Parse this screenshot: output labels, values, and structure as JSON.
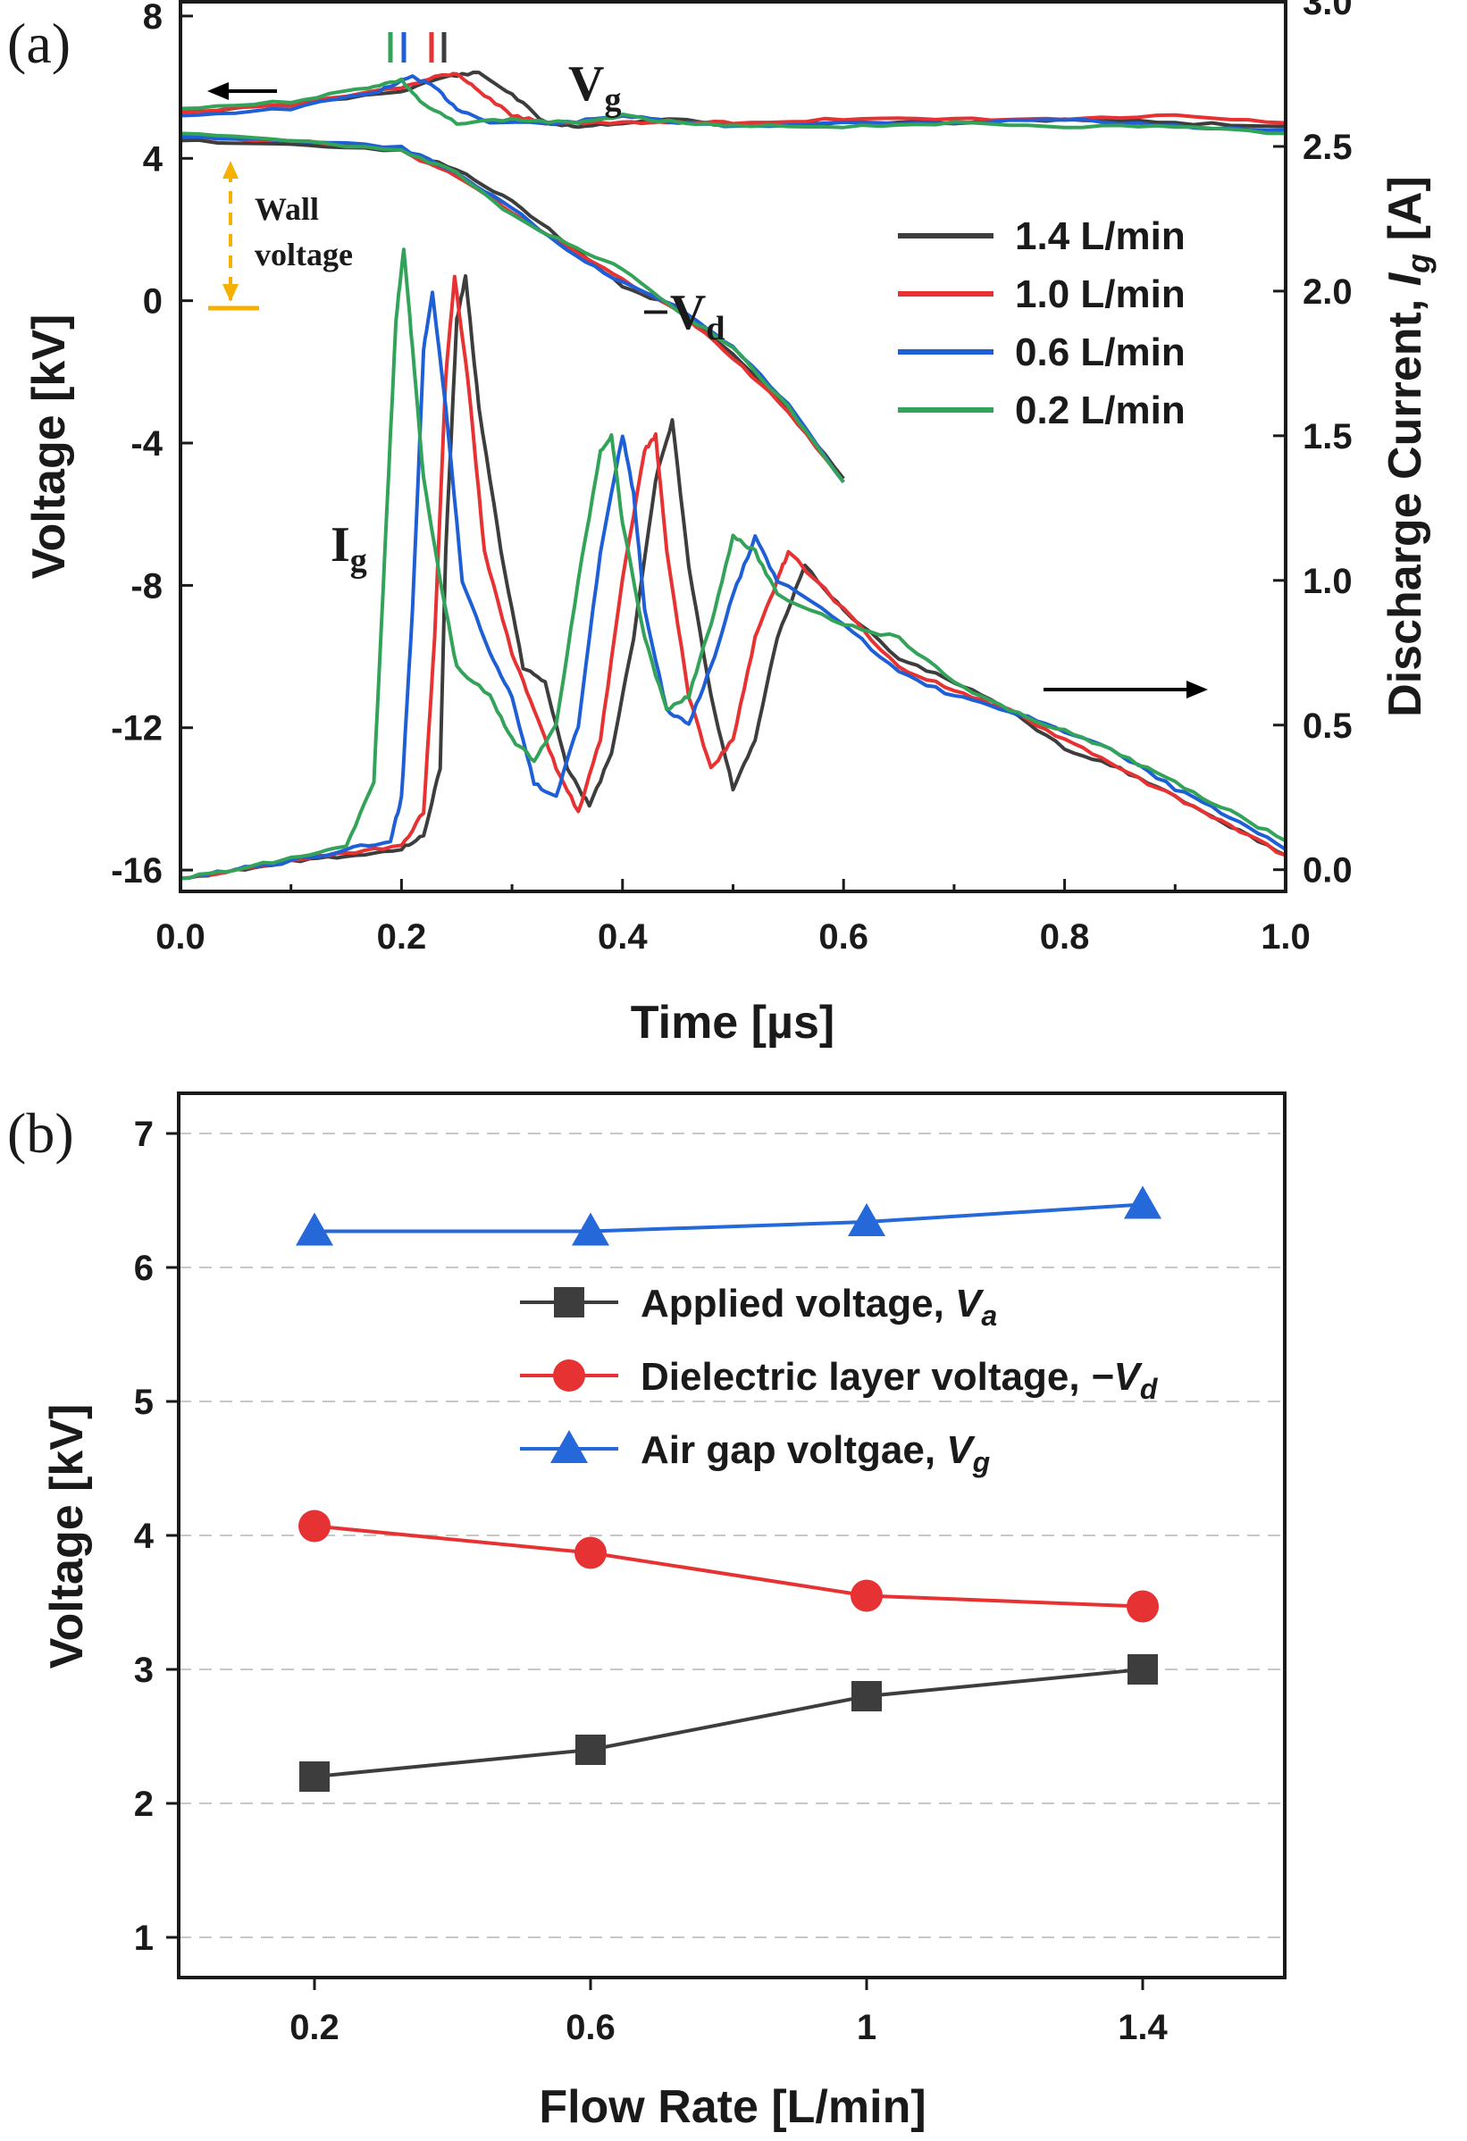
{
  "chart_data": [
    {
      "panel": "(a)",
      "type": "line",
      "xlabel": "Time [µs]",
      "ylabel_left": "Voltage [kV]",
      "ylabel_right_prefix": "Discharge Current, ",
      "ylabel_right_var": "I",
      "ylabel_right_sub": "g",
      "ylabel_right_suffix": " [A]",
      "xlim": [
        0,
        1.0
      ],
      "ylim_left": [
        -16.6,
        8.4
      ],
      "ylim_right": [
        -0.075,
        3.0
      ],
      "xticks": [
        "0.0",
        "0.2",
        "0.4",
        "0.6",
        "0.8",
        "1.0"
      ],
      "yticks_left": [
        "8",
        "4",
        "0",
        "-4",
        "-8",
        "-12",
        "-16"
      ],
      "yticks_right": [
        "3.0",
        "2.5",
        "2.0",
        "1.5",
        "1.0",
        "0.5",
        "0.0"
      ],
      "legend_placement": "right-middle",
      "annotations": {
        "vg_main": "V",
        "vg_sub": "g",
        "vd_main": "−V",
        "vd_sub": "d",
        "ig_main": "I",
        "ig_sub": "g",
        "wall_line1": "Wall",
        "wall_line2": "voltage"
      },
      "series": [
        {
          "name": "1.4 L/min",
          "color": "#3d3d3d",
          "vg": [
            [
              0,
              5.3
            ],
            [
              0.1,
              5.5
            ],
            [
              0.2,
              5.9
            ],
            [
              0.24,
              6.3
            ],
            [
              0.27,
              6.4
            ],
            [
              0.3,
              5.8
            ],
            [
              0.33,
              5.0
            ],
            [
              0.36,
              4.9
            ],
            [
              0.4,
              5.0
            ],
            [
              0.45,
              5.1
            ],
            [
              0.5,
              4.9
            ],
            [
              0.6,
              5.0
            ],
            [
              0.7,
              5.0
            ],
            [
              0.8,
              5.1
            ],
            [
              0.9,
              5.0
            ],
            [
              1.0,
              4.9
            ]
          ],
          "vd": [
            [
              0,
              4.5
            ],
            [
              0.1,
              4.4
            ],
            [
              0.2,
              4.2
            ],
            [
              0.25,
              3.7
            ],
            [
              0.3,
              2.8
            ],
            [
              0.35,
              1.6
            ],
            [
              0.4,
              0.4
            ],
            [
              0.45,
              -0.2
            ],
            [
              0.5,
              -1.5
            ],
            [
              0.55,
              -3.0
            ],
            [
              0.6,
              -5.0
            ]
          ],
          "ig": [
            [
              0,
              -0.03
            ],
            [
              0.05,
              0.0
            ],
            [
              0.1,
              0.03
            ],
            [
              0.15,
              0.05
            ],
            [
              0.2,
              0.07
            ],
            [
              0.22,
              0.12
            ],
            [
              0.235,
              0.35
            ],
            [
              0.24,
              1.1
            ],
            [
              0.25,
              1.9
            ],
            [
              0.258,
              2.05
            ],
            [
              0.27,
              1.6
            ],
            [
              0.29,
              1.1
            ],
            [
              0.31,
              0.7
            ],
            [
              0.33,
              0.65
            ],
            [
              0.35,
              0.35
            ],
            [
              0.37,
              0.22
            ],
            [
              0.39,
              0.4
            ],
            [
              0.41,
              0.8
            ],
            [
              0.43,
              1.35
            ],
            [
              0.445,
              1.55
            ],
            [
              0.46,
              1.05
            ],
            [
              0.48,
              0.6
            ],
            [
              0.5,
              0.28
            ],
            [
              0.52,
              0.45
            ],
            [
              0.54,
              0.8
            ],
            [
              0.565,
              1.05
            ],
            [
              0.6,
              0.9
            ],
            [
              0.65,
              0.73
            ],
            [
              0.7,
              0.65
            ],
            [
              0.75,
              0.55
            ],
            [
              0.8,
              0.42
            ],
            [
              0.85,
              0.35
            ],
            [
              0.9,
              0.25
            ],
            [
              0.95,
              0.15
            ],
            [
              1.0,
              0.05
            ]
          ]
        },
        {
          "name": "1.0 L/min",
          "color": "#e63232",
          "vg": [
            [
              0,
              5.3
            ],
            [
              0.1,
              5.5
            ],
            [
              0.2,
              6.0
            ],
            [
              0.23,
              6.3
            ],
            [
              0.25,
              6.4
            ],
            [
              0.27,
              5.9
            ],
            [
              0.3,
              5.2
            ],
            [
              0.33,
              5.0
            ],
            [
              0.4,
              5.0
            ],
            [
              0.45,
              5.0
            ],
            [
              0.5,
              5.0
            ],
            [
              0.6,
              5.1
            ],
            [
              0.7,
              5.1
            ],
            [
              0.8,
              5.1
            ],
            [
              0.9,
              5.2
            ],
            [
              1.0,
              5.0
            ]
          ],
          "vd": [
            [
              0,
              4.6
            ],
            [
              0.1,
              4.5
            ],
            [
              0.2,
              4.2
            ],
            [
              0.25,
              3.5
            ],
            [
              0.3,
              2.5
            ],
            [
              0.35,
              1.5
            ],
            [
              0.4,
              0.6
            ],
            [
              0.45,
              -0.3
            ],
            [
              0.5,
              -1.6
            ],
            [
              0.55,
              -3.1
            ],
            [
              0.6,
              -5.1
            ]
          ],
          "ig": [
            [
              0,
              -0.03
            ],
            [
              0.05,
              0.0
            ],
            [
              0.1,
              0.03
            ],
            [
              0.15,
              0.06
            ],
            [
              0.2,
              0.08
            ],
            [
              0.22,
              0.2
            ],
            [
              0.23,
              0.8
            ],
            [
              0.24,
              1.7
            ],
            [
              0.248,
              2.05
            ],
            [
              0.26,
              1.7
            ],
            [
              0.275,
              1.1
            ],
            [
              0.3,
              0.75
            ],
            [
              0.32,
              0.55
            ],
            [
              0.34,
              0.35
            ],
            [
              0.36,
              0.2
            ],
            [
              0.38,
              0.45
            ],
            [
              0.4,
              1.0
            ],
            [
              0.42,
              1.45
            ],
            [
              0.43,
              1.5
            ],
            [
              0.44,
              1.1
            ],
            [
              0.46,
              0.6
            ],
            [
              0.48,
              0.35
            ],
            [
              0.5,
              0.45
            ],
            [
              0.52,
              0.8
            ],
            [
              0.54,
              1.0
            ],
            [
              0.55,
              1.1
            ],
            [
              0.6,
              0.9
            ],
            [
              0.65,
              0.7
            ],
            [
              0.7,
              0.62
            ],
            [
              0.75,
              0.55
            ],
            [
              0.8,
              0.45
            ],
            [
              0.85,
              0.35
            ],
            [
              0.9,
              0.25
            ],
            [
              0.95,
              0.15
            ],
            [
              1.0,
              0.05
            ]
          ]
        },
        {
          "name": "0.6 L/min",
          "color": "#1f5fd6",
          "vg": [
            [
              0,
              5.2
            ],
            [
              0.1,
              5.4
            ],
            [
              0.18,
              5.9
            ],
            [
              0.21,
              6.3
            ],
            [
              0.23,
              6.0
            ],
            [
              0.25,
              5.4
            ],
            [
              0.28,
              5.0
            ],
            [
              0.35,
              5.0
            ],
            [
              0.4,
              5.2
            ],
            [
              0.45,
              5.0
            ],
            [
              0.5,
              4.9
            ],
            [
              0.6,
              5.0
            ],
            [
              0.7,
              5.0
            ],
            [
              0.8,
              5.1
            ],
            [
              0.9,
              4.9
            ],
            [
              1.0,
              4.8
            ]
          ],
          "vd": [
            [
              0,
              4.6
            ],
            [
              0.1,
              4.5
            ],
            [
              0.2,
              4.3
            ],
            [
              0.25,
              3.6
            ],
            [
              0.3,
              2.6
            ],
            [
              0.35,
              1.4
            ],
            [
              0.4,
              0.5
            ],
            [
              0.45,
              -0.2
            ],
            [
              0.5,
              -1.3
            ],
            [
              0.55,
              -2.9
            ],
            [
              0.6,
              -5.1
            ]
          ],
          "ig": [
            [
              0,
              -0.03
            ],
            [
              0.05,
              0.0
            ],
            [
              0.1,
              0.03
            ],
            [
              0.15,
              0.07
            ],
            [
              0.19,
              0.1
            ],
            [
              0.2,
              0.25
            ],
            [
              0.21,
              0.9
            ],
            [
              0.22,
              1.8
            ],
            [
              0.228,
              2.0
            ],
            [
              0.24,
              1.6
            ],
            [
              0.255,
              1.0
            ],
            [
              0.28,
              0.75
            ],
            [
              0.3,
              0.6
            ],
            [
              0.32,
              0.3
            ],
            [
              0.34,
              0.25
            ],
            [
              0.36,
              0.5
            ],
            [
              0.38,
              1.1
            ],
            [
              0.4,
              1.5
            ],
            [
              0.41,
              1.3
            ],
            [
              0.42,
              0.9
            ],
            [
              0.44,
              0.55
            ],
            [
              0.46,
              0.5
            ],
            [
              0.48,
              0.7
            ],
            [
              0.5,
              0.95
            ],
            [
              0.52,
              1.15
            ],
            [
              0.54,
              1.0
            ],
            [
              0.6,
              0.85
            ],
            [
              0.65,
              0.68
            ],
            [
              0.7,
              0.6
            ],
            [
              0.75,
              0.55
            ],
            [
              0.8,
              0.48
            ],
            [
              0.85,
              0.4
            ],
            [
              0.9,
              0.28
            ],
            [
              0.95,
              0.18
            ],
            [
              1.0,
              0.07
            ]
          ]
        },
        {
          "name": "0.2 L/min",
          "color": "#33a35a",
          "vg": [
            [
              0,
              5.4
            ],
            [
              0.1,
              5.6
            ],
            [
              0.17,
              6.0
            ],
            [
              0.2,
              6.2
            ],
            [
              0.22,
              5.5
            ],
            [
              0.25,
              5.0
            ],
            [
              0.3,
              5.1
            ],
            [
              0.35,
              5.0
            ],
            [
              0.4,
              5.2
            ],
            [
              0.45,
              5.0
            ],
            [
              0.5,
              4.9
            ],
            [
              0.6,
              4.9
            ],
            [
              0.7,
              5.0
            ],
            [
              0.8,
              4.9
            ],
            [
              0.9,
              4.9
            ],
            [
              1.0,
              4.7
            ]
          ],
          "vd": [
            [
              0,
              4.7
            ],
            [
              0.1,
              4.5
            ],
            [
              0.2,
              4.2
            ],
            [
              0.25,
              3.6
            ],
            [
              0.3,
              2.4
            ],
            [
              0.35,
              1.6
            ],
            [
              0.4,
              0.9
            ],
            [
              0.45,
              -0.3
            ],
            [
              0.5,
              -1.3
            ],
            [
              0.55,
              -3.0
            ],
            [
              0.6,
              -5.1
            ]
          ],
          "ig": [
            [
              0,
              -0.03
            ],
            [
              0.05,
              0.0
            ],
            [
              0.1,
              0.04
            ],
            [
              0.15,
              0.08
            ],
            [
              0.175,
              0.3
            ],
            [
              0.185,
              1.1
            ],
            [
              0.195,
              1.9
            ],
            [
              0.202,
              2.15
            ],
            [
              0.21,
              1.8
            ],
            [
              0.22,
              1.35
            ],
            [
              0.235,
              1.0
            ],
            [
              0.25,
              0.7
            ],
            [
              0.28,
              0.6
            ],
            [
              0.3,
              0.45
            ],
            [
              0.32,
              0.38
            ],
            [
              0.34,
              0.5
            ],
            [
              0.36,
              1.0
            ],
            [
              0.38,
              1.45
            ],
            [
              0.39,
              1.5
            ],
            [
              0.4,
              1.2
            ],
            [
              0.42,
              0.8
            ],
            [
              0.44,
              0.55
            ],
            [
              0.46,
              0.6
            ],
            [
              0.48,
              0.85
            ],
            [
              0.5,
              1.15
            ],
            [
              0.52,
              1.1
            ],
            [
              0.54,
              0.95
            ],
            [
              0.6,
              0.85
            ],
            [
              0.65,
              0.8
            ],
            [
              0.7,
              0.65
            ],
            [
              0.75,
              0.55
            ],
            [
              0.8,
              0.48
            ],
            [
              0.85,
              0.4
            ],
            [
              0.9,
              0.3
            ],
            [
              0.95,
              0.2
            ],
            [
              1.0,
              0.1
            ]
          ]
        }
      ]
    },
    {
      "panel": "(b)",
      "type": "line",
      "xlabel": "Flow Rate [L/min]",
      "ylabel": "Voltage [kV]",
      "categories": [
        "0.2",
        "0.6",
        "1",
        "1.4"
      ],
      "ylim": [
        0.7,
        7.3
      ],
      "yticks": [
        "7",
        "6",
        "5",
        "4",
        "3",
        "2",
        "1"
      ],
      "grid": true,
      "legend_placement": "upper-middle",
      "series": [
        {
          "name": "Applied voltage, ",
          "name_var": "V",
          "name_sub": "a",
          "marker": "square",
          "color": "#3d3d3d",
          "values": [
            2.2,
            2.4,
            2.8,
            3.0
          ]
        },
        {
          "name": "Dielectric layer voltage, ",
          "name_var": "−V",
          "name_sub": "d",
          "marker": "circle",
          "color": "#e63232",
          "values": [
            4.07,
            3.87,
            3.55,
            3.47
          ]
        },
        {
          "name": "Air gap voltgae, ",
          "name_var": "V",
          "name_sub": "g",
          "marker": "triangle",
          "color": "#2568d9",
          "values": [
            6.27,
            6.27,
            6.34,
            6.47
          ]
        }
      ]
    }
  ]
}
